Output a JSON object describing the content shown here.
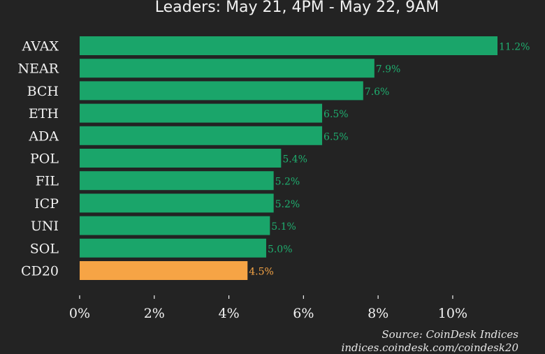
{
  "title": "Leaders: May 21, 4PM - May 22, 9AM",
  "source": "Source: CoinDesk Indices",
  "url": "indices.coindesk.com/coindesk20",
  "colors": {
    "background": "#232323",
    "leader_bar": "#1aa56a",
    "leader_label": "#1fae6f",
    "index_bar": "#f6a445",
    "index_label": "#f6a445",
    "text": "#f2f2f2"
  },
  "chart_data": {
    "type": "bar",
    "orientation": "horizontal",
    "title": "Leaders: May 21, 4PM - May 22, 9AM",
    "categories": [
      "AVAX",
      "NEAR",
      "BCH",
      "ETH",
      "ADA",
      "POL",
      "FIL",
      "ICP",
      "UNI",
      "SOL",
      "CD20"
    ],
    "values": [
      11.2,
      7.9,
      7.6,
      6.5,
      6.5,
      5.4,
      5.2,
      5.2,
      5.1,
      5.0,
      4.5
    ],
    "value_labels": [
      "11.2%",
      "7.9%",
      "7.6%",
      "6.5%",
      "6.5%",
      "5.4%",
      "5.2%",
      "5.2%",
      "5.1%",
      "5.0%",
      "4.5%"
    ],
    "highlight": [
      "leader",
      "leader",
      "leader",
      "leader",
      "leader",
      "leader",
      "leader",
      "leader",
      "leader",
      "leader",
      "index"
    ],
    "xlim": [
      0,
      11.2
    ],
    "xticks": [
      0,
      2,
      4,
      6,
      8,
      10
    ],
    "xtick_labels": [
      "0%",
      "2%",
      "4%",
      "6%",
      "8%",
      "10%"
    ],
    "xlabel": "",
    "ylabel": "",
    "grid": false,
    "legend": "none"
  }
}
